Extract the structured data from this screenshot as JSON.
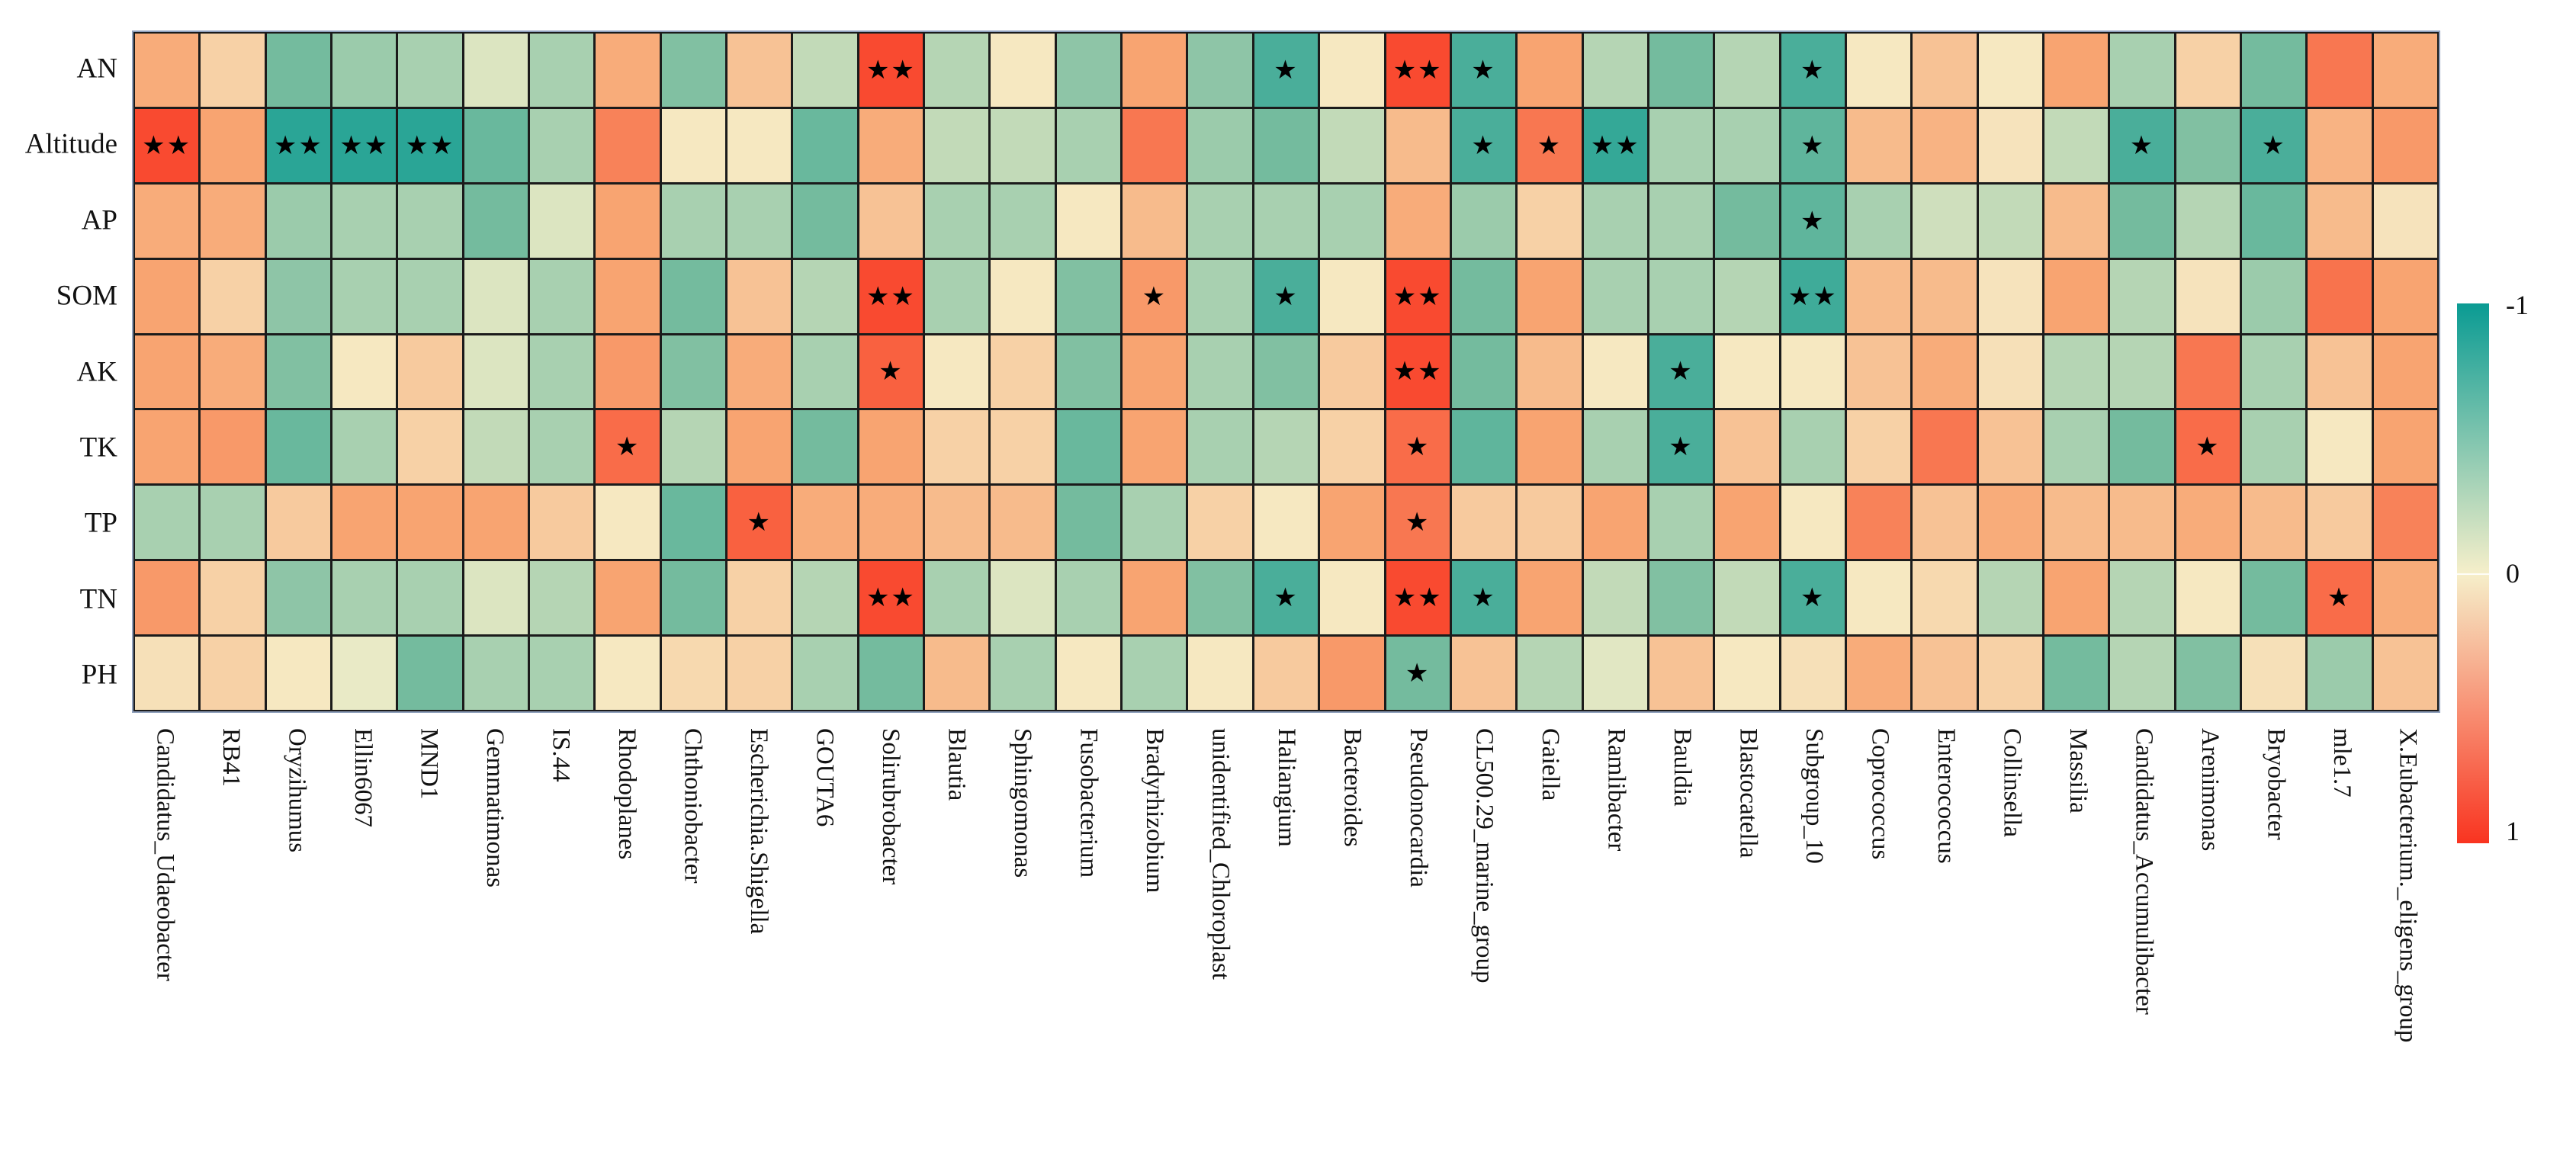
{
  "chart_data": {
    "type": "heatmap",
    "title": "",
    "legend_position": "right",
    "grid": "on",
    "rows": [
      "AN",
      "Altitude",
      "AP",
      "SOM",
      "AK",
      "TK",
      "TP",
      "TN",
      "PH"
    ],
    "columns": [
      "Candidatus_Udaeobacter",
      "RB41",
      "Oryzihumus",
      "Ellin6067",
      "MND1",
      "Gemmatimonas",
      "IS.44",
      "Rhodoplanes",
      "Chthoniobacter",
      "Escherichia.Shigella",
      "GOUTA6",
      "Solirubrobacter",
      "Blautia",
      "Sphingomonas",
      "Fusobacterium",
      "Bradyrhizobium",
      "unidentified_Chloroplast",
      "Haliangium",
      "Bacteroides",
      "Pseudonocardia",
      "CL500.29_marine_group",
      "Gaiella",
      "Ramlibacter",
      "Bauldia",
      "Blastocatella",
      "Subgroup_10",
      "Coprococcus",
      "Enterococcus",
      "Collinsella",
      "Massilia",
      "Candidatus_Accumulibacter",
      "Arenimonas",
      "Bryobacter",
      "mle1.7",
      "X.Eubacterium._eligens_group"
    ],
    "value_range": [
      -1,
      1
    ],
    "values": [
      [
        0.45,
        0.2,
        -0.5,
        -0.35,
        -0.3,
        -0.1,
        -0.3,
        0.45,
        -0.45,
        0.3,
        -0.2,
        0.9,
        -0.25,
        0.05,
        -0.4,
        0.5,
        -0.4,
        -0.7,
        0.05,
        0.9,
        -0.7,
        0.5,
        -0.25,
        -0.5,
        -0.25,
        -0.7,
        0.05,
        0.3,
        0.05,
        0.5,
        -0.3,
        0.2,
        -0.5,
        0.7,
        0.45
      ],
      [
        0.9,
        0.5,
        -0.85,
        -0.85,
        -0.85,
        -0.55,
        -0.3,
        0.65,
        0.05,
        0.05,
        -0.55,
        0.45,
        -0.2,
        -0.2,
        -0.3,
        0.7,
        -0.35,
        -0.5,
        -0.2,
        0.35,
        -0.7,
        0.7,
        -0.8,
        -0.3,
        -0.3,
        -0.6,
        0.35,
        0.4,
        0.08,
        -0.2,
        -0.7,
        -0.45,
        -0.7,
        0.4,
        0.55
      ],
      [
        0.45,
        0.45,
        -0.35,
        -0.3,
        -0.3,
        -0.5,
        -0.1,
        0.5,
        -0.3,
        -0.3,
        -0.5,
        0.3,
        -0.3,
        -0.3,
        0.05,
        0.35,
        -0.3,
        -0.3,
        -0.3,
        0.45,
        -0.35,
        0.2,
        -0.3,
        -0.3,
        -0.5,
        -0.6,
        -0.3,
        -0.15,
        -0.2,
        0.35,
        -0.5,
        -0.25,
        -0.55,
        0.35,
        0.08
      ],
      [
        0.5,
        0.2,
        -0.4,
        -0.3,
        -0.3,
        -0.1,
        -0.3,
        0.5,
        -0.5,
        0.3,
        -0.25,
        0.9,
        -0.3,
        0.05,
        -0.45,
        0.55,
        -0.3,
        -0.7,
        0.05,
        0.9,
        -0.5,
        0.5,
        -0.3,
        -0.3,
        -0.25,
        -0.75,
        0.35,
        0.35,
        0.08,
        0.5,
        -0.25,
        0.08,
        -0.35,
        0.72,
        0.5
      ],
      [
        0.5,
        0.45,
        -0.45,
        0.05,
        0.25,
        -0.1,
        -0.3,
        0.55,
        -0.45,
        0.45,
        -0.3,
        0.8,
        0.05,
        0.2,
        -0.45,
        0.5,
        -0.3,
        -0.45,
        0.25,
        0.9,
        -0.5,
        0.35,
        0.05,
        -0.7,
        0.05,
        0.05,
        0.3,
        0.45,
        0.1,
        -0.25,
        -0.25,
        0.7,
        -0.3,
        0.3,
        0.5
      ],
      [
        0.5,
        0.55,
        -0.55,
        -0.3,
        0.2,
        -0.2,
        -0.3,
        0.75,
        -0.25,
        0.5,
        -0.5,
        0.5,
        0.2,
        0.2,
        -0.55,
        0.5,
        -0.3,
        -0.25,
        0.2,
        0.75,
        -0.6,
        0.5,
        -0.3,
        -0.7,
        0.3,
        -0.3,
        0.2,
        0.7,
        0.3,
        -0.3,
        -0.5,
        0.75,
        -0.3,
        0.05,
        0.5
      ],
      [
        -0.3,
        -0.3,
        0.25,
        0.5,
        0.5,
        0.5,
        0.25,
        0.05,
        -0.55,
        0.8,
        0.45,
        0.45,
        0.35,
        0.35,
        -0.5,
        -0.3,
        0.2,
        0.05,
        0.5,
        0.7,
        0.25,
        0.25,
        0.5,
        -0.3,
        0.5,
        0.05,
        0.65,
        0.3,
        0.45,
        0.35,
        0.35,
        0.45,
        0.35,
        0.25,
        0.65
      ],
      [
        0.55,
        0.2,
        -0.4,
        -0.3,
        -0.3,
        -0.1,
        -0.25,
        0.5,
        -0.5,
        0.2,
        -0.25,
        0.9,
        -0.3,
        -0.1,
        -0.3,
        0.5,
        -0.45,
        -0.7,
        0.05,
        0.9,
        -0.7,
        0.5,
        -0.2,
        -0.45,
        -0.2,
        -0.7,
        0.05,
        0.15,
        -0.25,
        0.5,
        -0.25,
        0.05,
        -0.5,
        0.75,
        0.45
      ],
      [
        0.1,
        0.2,
        0.05,
        -0.05,
        -0.5,
        -0.3,
        -0.3,
        0.05,
        0.15,
        0.2,
        -0.3,
        -0.5,
        0.35,
        -0.3,
        0.05,
        -0.3,
        0.05,
        0.25,
        0.55,
        -0.5,
        0.3,
        -0.25,
        -0.08,
        0.3,
        0.05,
        0.1,
        0.45,
        0.3,
        0.2,
        -0.5,
        -0.25,
        -0.45,
        0.1,
        -0.35,
        0.3
      ]
    ],
    "significance": [
      [
        "",
        "",
        "",
        "",
        "",
        "",
        "",
        "",
        "",
        "",
        "",
        "**",
        "",
        "",
        "",
        "",
        "",
        "*",
        "",
        "**",
        "*",
        "",
        "",
        "",
        "",
        "*",
        "",
        "",
        "",
        "",
        "",
        "",
        "",
        "",
        ""
      ],
      [
        "**",
        "",
        "**",
        "**",
        "**",
        "",
        "",
        "",
        "",
        "",
        "",
        "",
        "",
        "",
        "",
        "",
        "",
        "",
        "",
        "",
        "*",
        "*",
        "**",
        "",
        "",
        "*",
        "",
        "",
        "",
        "",
        "*",
        "",
        "*",
        "",
        ""
      ],
      [
        "",
        "",
        "",
        "",
        "",
        "",
        "",
        "",
        "",
        "",
        "",
        "",
        "",
        "",
        "",
        "",
        "",
        "",
        "",
        "",
        "",
        "",
        "",
        "",
        "",
        "*",
        "",
        "",
        "",
        "",
        "",
        "",
        "",
        "",
        ""
      ],
      [
        "",
        "",
        "",
        "",
        "",
        "",
        "",
        "",
        "",
        "",
        "",
        "**",
        "",
        "",
        "",
        "*",
        "",
        "*",
        "",
        "**",
        "",
        "",
        "",
        "",
        "",
        "**",
        "",
        "",
        "",
        "",
        "",
        "",
        "",
        "",
        ""
      ],
      [
        "",
        "",
        "",
        "",
        "",
        "",
        "",
        "",
        "",
        "",
        "",
        "*",
        "",
        "",
        "",
        "",
        "",
        "",
        "",
        "**",
        "",
        "",
        "",
        "*",
        "",
        "",
        "",
        "",
        "",
        "",
        "",
        "",
        "",
        "",
        ""
      ],
      [
        "",
        "",
        "",
        "",
        "",
        "",
        "",
        "*",
        "",
        "",
        "",
        "",
        "",
        "",
        "",
        "",
        "",
        "",
        "",
        "*",
        "",
        "",
        "",
        "*",
        "",
        "",
        "",
        "",
        "",
        "",
        "",
        "*",
        "",
        "",
        ""
      ],
      [
        "",
        "",
        "",
        "",
        "",
        "",
        "",
        "",
        "",
        "*",
        "",
        "",
        "",
        "",
        "",
        "",
        "",
        "",
        "",
        "*",
        "",
        "",
        "",
        "",
        "",
        "",
        "",
        "",
        "",
        "",
        "",
        "",
        "",
        "",
        ""
      ],
      [
        "",
        "",
        "",
        "",
        "",
        "",
        "",
        "",
        "",
        "",
        "",
        "**",
        "",
        "",
        "",
        "",
        "",
        "*",
        "",
        "**",
        "*",
        "",
        "",
        "",
        "",
        "*",
        "",
        "",
        "",
        "",
        "",
        "",
        "",
        "*",
        ""
      ],
      [
        "",
        "",
        "",
        "",
        "",
        "",
        "",
        "",
        "",
        "",
        "",
        "",
        "",
        "",
        "",
        "",
        "",
        "",
        "",
        "*",
        "",
        "",
        "",
        "",
        "",
        "",
        "",
        "",
        "",
        "",
        "",
        "",
        "",
        "",
        ""
      ]
    ],
    "star_glyphs": {
      "one": "★",
      "two": "★★"
    },
    "colorbar": {
      "labels": [
        "-1",
        "0",
        "1"
      ],
      "top_color": "#0a9b93",
      "mid_color": "#f6efca",
      "bottom_color": "#f93420",
      "orientation": "vertical"
    },
    "palette": {
      "neg_strong": "#0a9b93",
      "neg_mid": "#74bb9e",
      "zero": "#f6efca",
      "pos_mid": "#f8a471",
      "pos_strong": "#f93420",
      "cell_border": "#1b1b1b",
      "frame_border": "#8fa0bc",
      "star_color": "#000000"
    }
  }
}
